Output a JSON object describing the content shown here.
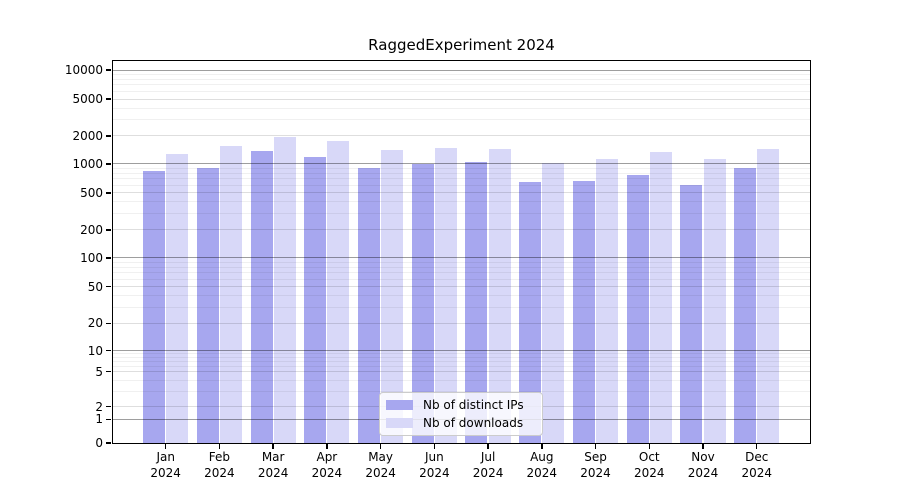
{
  "title": "RaggedExperiment 2024",
  "chart_data": {
    "type": "bar",
    "title": "RaggedExperiment 2024",
    "categories": [
      "Jan 2024",
      "Feb 2024",
      "Mar 2024",
      "Apr 2024",
      "May 2024",
      "Jun 2024",
      "Jul 2024",
      "Aug 2024",
      "Sep 2024",
      "Oct 2024",
      "Nov 2024",
      "Dec 2024"
    ],
    "series": [
      {
        "name": "Nb of distinct IPs",
        "color": "#a7a7ef",
        "values": [
          840,
          910,
          1390,
          1180,
          900,
          990,
          1040,
          650,
          660,
          770,
          600,
          910
        ]
      },
      {
        "name": "Nb of downloads",
        "color": "#d8d8f8",
        "values": [
          1270,
          1560,
          1930,
          1750,
          1420,
          1500,
          1460,
          1020,
          1120,
          1350,
          1140,
          1450
        ]
      }
    ],
    "xlabel": "",
    "ylabel": "",
    "yscale": "symlog",
    "yticks": [
      0,
      1,
      2,
      5,
      10,
      20,
      50,
      100,
      200,
      500,
      1000,
      2000,
      5000,
      10000
    ],
    "ylim": [
      0,
      12500
    ],
    "grid": true,
    "legend_position": "lower center"
  },
  "legend": {
    "items": [
      {
        "label": "Nb of distinct IPs",
        "color": "#a7a7ef"
      },
      {
        "label": "Nb of downloads",
        "color": "#d8d8f8"
      }
    ]
  },
  "colors": {
    "bar_distinct_ips": "#a7a7ef",
    "bar_downloads": "#d8d8f8",
    "grid_major_power10": "#9e9e9e",
    "grid_major_other": "#e0e0e0",
    "grid_minor": "#f0f0f0",
    "spine": "#000000",
    "background": "#ffffff",
    "text": "#000000"
  }
}
